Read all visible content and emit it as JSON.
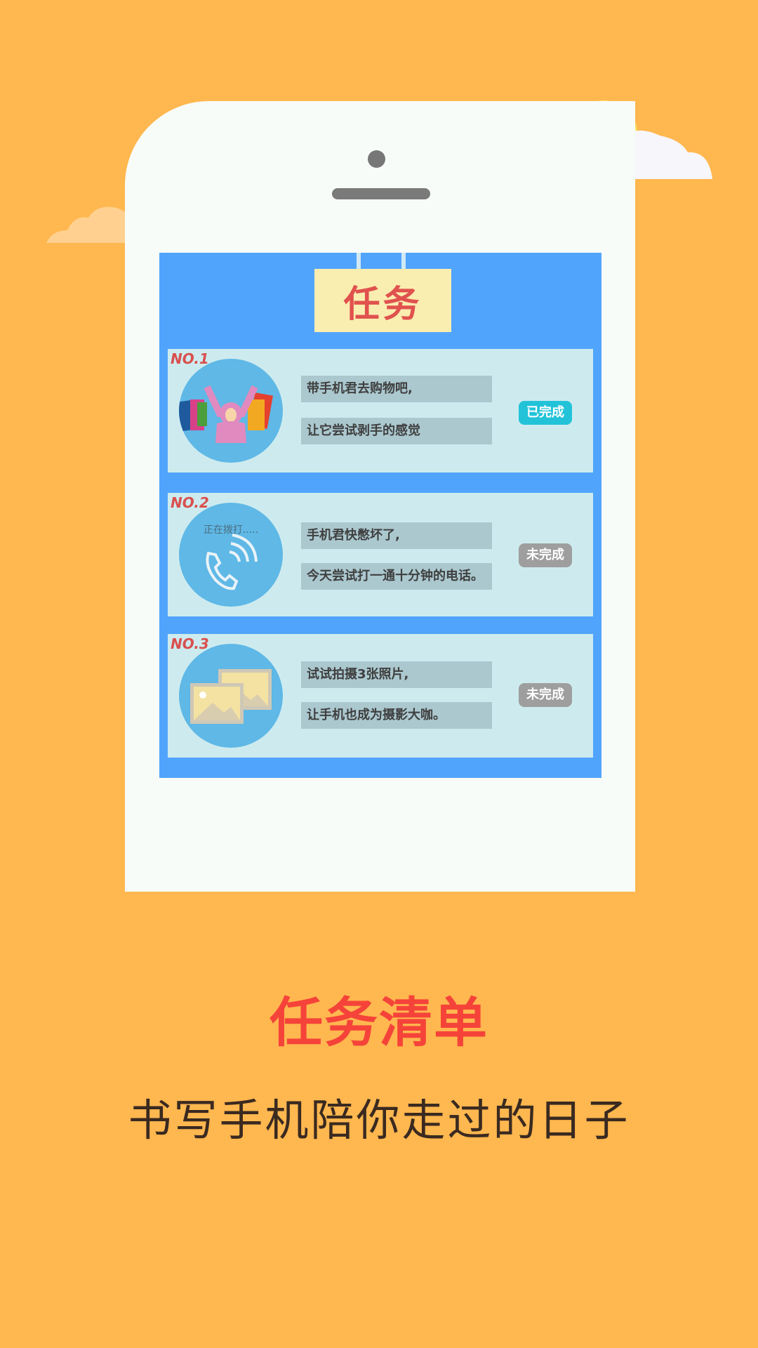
{
  "sign": {
    "title": "任务"
  },
  "tasks": [
    {
      "no": "NO.1",
      "line1": "带手机君去购物吧,",
      "line2": "让它尝试剥手的感觉",
      "status": "已完成",
      "status_color": "#22C3D9",
      "icon": "shopping-girl-icon"
    },
    {
      "no": "NO.2",
      "line1": "手机君快憋坏了,",
      "line2": "今天尝试打一通十分钟的电话。",
      "status": "未完成",
      "status_color": "#9E9E9E",
      "icon": "phone-call-icon",
      "calling_text": "正在拨打....."
    },
    {
      "no": "NO.3",
      "line1": "试试拍摄3张照片,",
      "line2": "让手机也成为摄影大咖。",
      "status": "未完成",
      "status_color": "#9E9E9E",
      "icon": "photos-icon"
    }
  ],
  "heading": "任务清单",
  "subheading": "书写手机陪你走过的日子",
  "colors": {
    "background": "#FFB74F",
    "screen": "#51A4FC",
    "card": "#CDEBEF",
    "accent_red": "#F5433A"
  }
}
